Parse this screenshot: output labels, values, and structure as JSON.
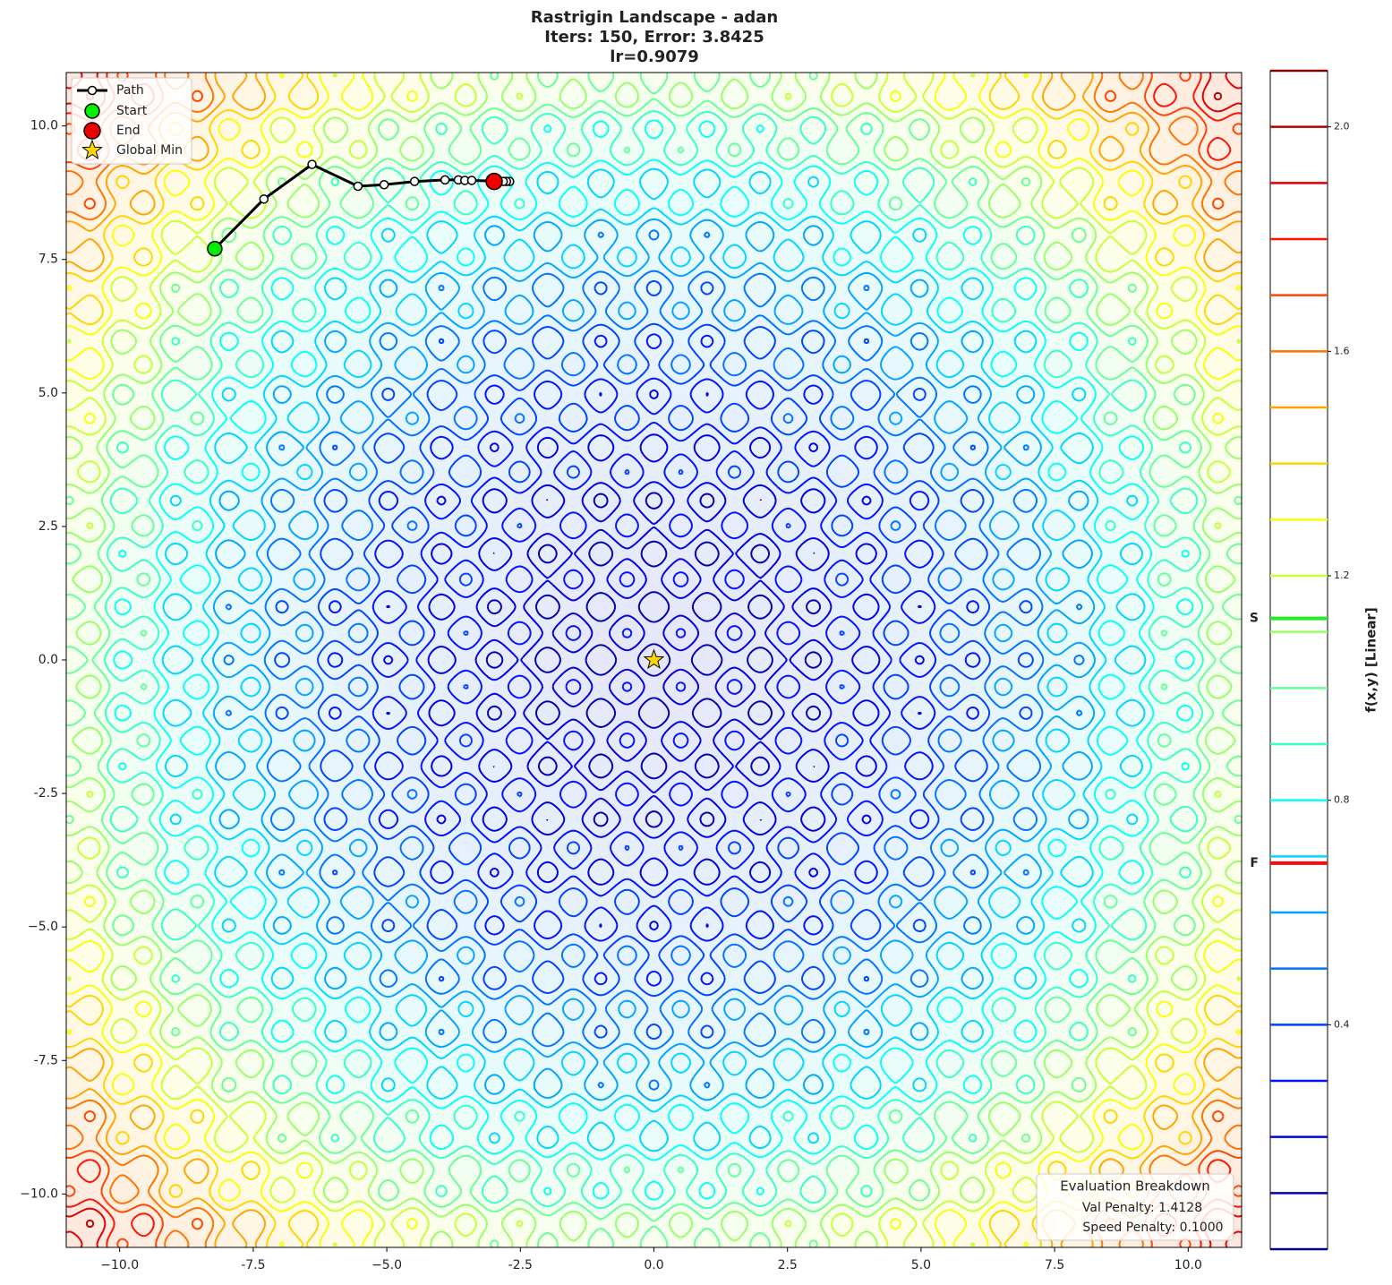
{
  "chart_data": {
    "type": "contour",
    "title_lines": [
      "Rastrigin Landscape - adan",
      "Iters: 150, Error: 3.8425",
      "lr=0.9079"
    ],
    "xlim": [
      -11,
      11
    ],
    "ylim": [
      -11,
      11
    ],
    "xticks": [
      {
        "value": -10,
        "label": "−10.0"
      },
      -7.5,
      {
        "value": -5,
        "label": "−5.0"
      },
      -2.5,
      {
        "value": 0,
        "label": "0.0"
      },
      2.5,
      {
        "value": 5,
        "label": "5.0"
      },
      7.5,
      {
        "value": 10,
        "label": "10.0"
      }
    ],
    "yticks": [
      {
        "value": -10,
        "label": "−10.0"
      },
      -7.5,
      {
        "value": -5,
        "label": "−5.0"
      },
      -2.5,
      {
        "value": 0,
        "label": "0.0"
      },
      2.5,
      {
        "value": 5,
        "label": "5.0"
      },
      7.5,
      {
        "value": 10,
        "label": "10.0"
      }
    ],
    "path": {
      "name": "Path",
      "color": "#000000",
      "x": [
        -8.22,
        -7.3,
        -6.4,
        -5.54,
        -5.05,
        -4.48,
        -3.91,
        -3.66,
        -3.54,
        -3.41,
        -2.7,
        -2.76,
        -2.82,
        -2.99
      ],
      "y": [
        7.7,
        8.63,
        9.28,
        8.87,
        8.9,
        8.96,
        8.99,
        8.99,
        8.98,
        8.98,
        8.96,
        8.96,
        8.96,
        8.96
      ]
    },
    "start": {
      "name": "Start",
      "color": "#00ee00"
    },
    "end": {
      "name": "End",
      "color": "#ee0000"
    },
    "global_min": {
      "name": "Global Min",
      "x": 0,
      "y": 0,
      "color": "#ffd700"
    },
    "legend": "upper left",
    "colorbar": {
      "label": "f(x,y) [Linear]",
      "colormap": "jet",
      "lim": [
        0,
        2.1
      ],
      "ticks": [
        0.4,
        0.8,
        1.2,
        1.6,
        {
          "value": 2,
          "label": "2.0"
        }
      ],
      "levels": [
        0,
        0.1,
        0.2,
        0.3,
        0.4,
        0.5,
        0.6,
        0.7,
        0.8,
        0.9,
        1.0,
        1.1,
        1.2,
        1.3,
        1.4,
        1.5,
        1.6,
        1.7,
        1.8,
        1.9,
        2.0,
        2.1
      ],
      "markers": [
        {
          "label": "S",
          "value": 1.124,
          "color": "#22ee22"
        },
        {
          "label": "F",
          "value": 0.688,
          "color": "#ee1111"
        }
      ]
    },
    "annotation": {
      "title": "Evaluation Breakdown",
      "lines": [
        "Val Penalty: 1.4128",
        "Speed Penalty: 0.1000"
      ]
    }
  }
}
